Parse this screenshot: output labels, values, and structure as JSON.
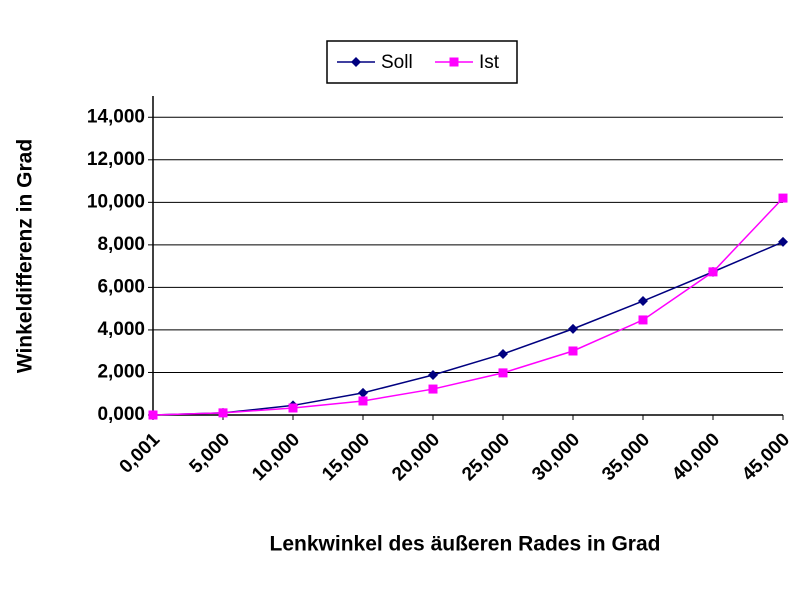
{
  "chart_data": {
    "type": "line",
    "x_label": "Lenkwinkel des äußeren Rades in Grad",
    "y_label": "Winkeldifferenz  in Grad",
    "categories": [
      "0,001",
      "5,000",
      "10,000",
      "15,000",
      "20,000",
      "25,000",
      "30,000",
      "35,000",
      "40,000",
      "45,000"
    ],
    "series": [
      {
        "name": "Soll",
        "color": "#000080",
        "marker": "diamond",
        "values": [
          0,
          0.1,
          0.45,
          1.04,
          1.88,
          2.87,
          4.05,
          5.36,
          6.73,
          8.14
        ]
      },
      {
        "name": "Ist",
        "color": "#ff00ff",
        "marker": "square",
        "values": [
          0,
          0.1,
          0.33,
          0.66,
          1.22,
          1.98,
          3.01,
          4.47,
          6.73,
          10.2
        ]
      }
    ],
    "ylim": [
      0,
      15
    ],
    "yticks": [
      {
        "value": 0,
        "label": "0,000"
      },
      {
        "value": 2,
        "label": "2,000"
      },
      {
        "value": 4,
        "label": "4,000"
      },
      {
        "value": 6,
        "label": "6,000"
      },
      {
        "value": 8,
        "label": "8,000"
      },
      {
        "value": 10,
        "label": "10,000"
      },
      {
        "value": 12,
        "label": "12,000"
      },
      {
        "value": 14,
        "label": "14,000"
      }
    ],
    "grid": true,
    "legend": "top"
  }
}
